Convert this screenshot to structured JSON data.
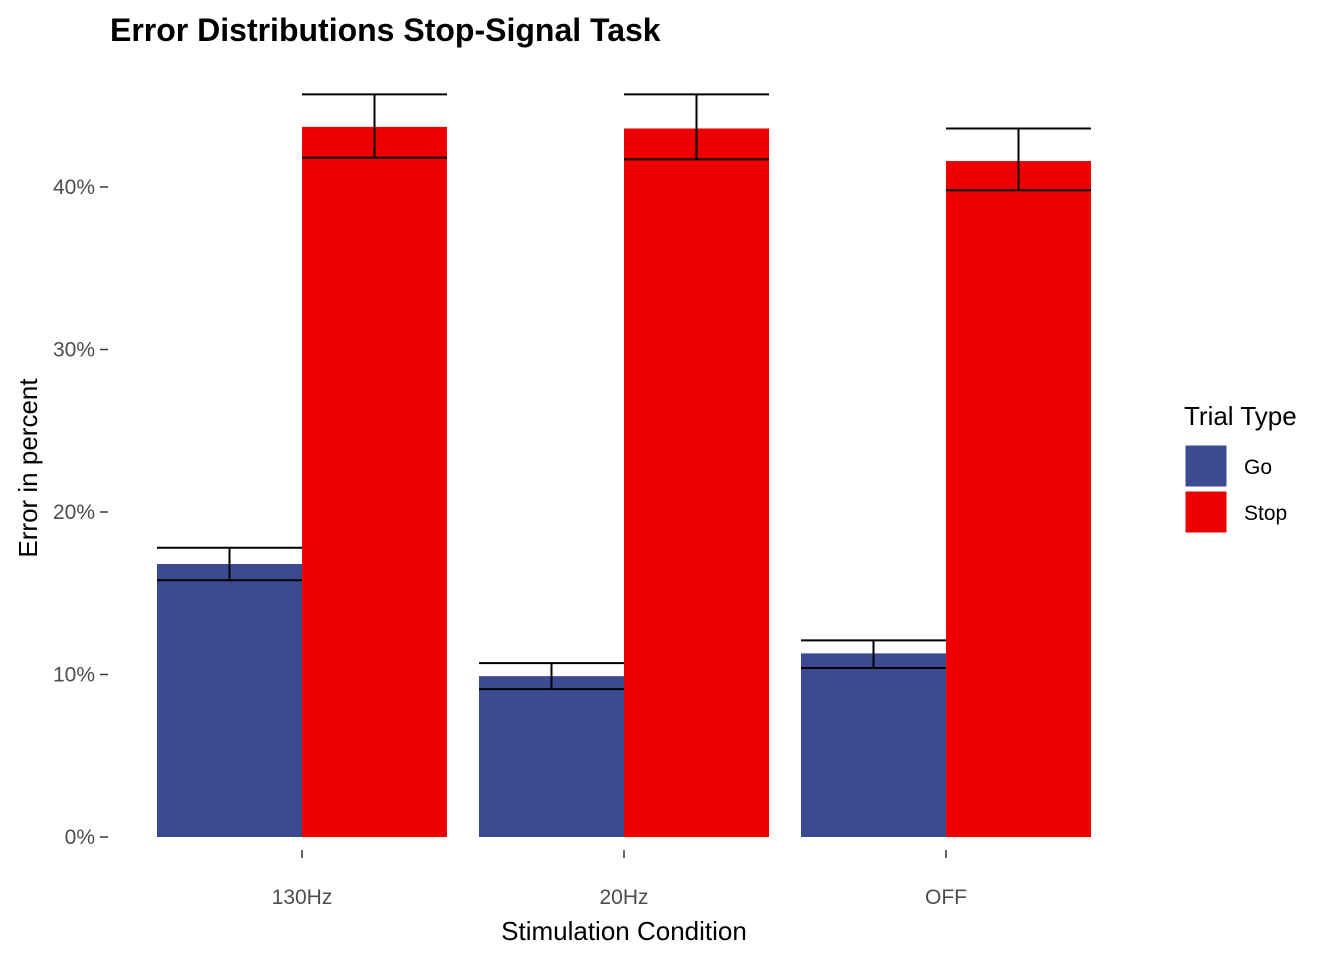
{
  "chart_data": {
    "type": "bar",
    "title": "Error Distributions Stop-Signal Task",
    "xlabel": "Stimulation Condition",
    "ylabel": "Error in percent",
    "categories": [
      "130Hz",
      "20Hz",
      "OFF"
    ],
    "series": [
      {
        "name": "Go",
        "color": "#3c4b91",
        "values": [
          16.8,
          9.9,
          11.3
        ],
        "err_low": [
          15.8,
          9.1,
          10.4
        ],
        "err_high": [
          17.8,
          10.7,
          12.1
        ]
      },
      {
        "name": "Stop",
        "color": "#ee0000",
        "values": [
          43.7,
          43.6,
          41.6
        ],
        "err_low": [
          41.8,
          41.7,
          39.8
        ],
        "err_high": [
          45.7,
          45.7,
          43.6
        ]
      }
    ],
    "ylim": [
      0,
      46
    ],
    "yticks": [
      0,
      10,
      20,
      30,
      40
    ],
    "ytick_labels": [
      "0%",
      "10%",
      "20%",
      "30%",
      "40%"
    ],
    "legend": {
      "title": "Trial Type",
      "position": "right"
    },
    "grid": false
  }
}
